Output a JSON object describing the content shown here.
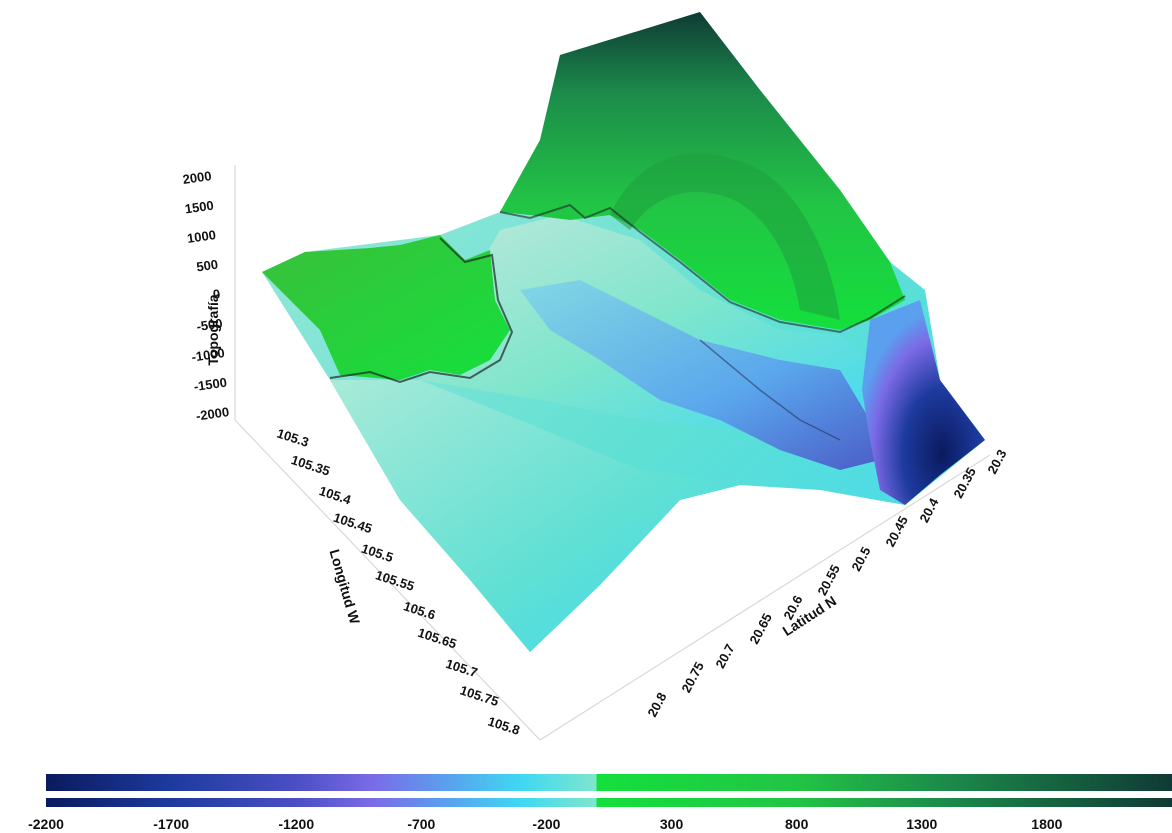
{
  "chart_data": {
    "type": "surface3d",
    "z_axis": {
      "label": "Topografía",
      "ticks": [
        "2000",
        "1500",
        "1000",
        "500",
        "0",
        "-500",
        "-1000",
        "-1500",
        "-2000"
      ]
    },
    "longitude_axis": {
      "label": "Longitud W",
      "ticks": [
        "105.3",
        "105.35",
        "105.4",
        "105.45",
        "105.5",
        "105.55",
        "105.6",
        "105.65",
        "105.7",
        "105.75",
        "105.8"
      ]
    },
    "latitude_axis": {
      "label": "Latitud N",
      "ticks": [
        "20.8",
        "20.75",
        "20.7",
        "20.65",
        "20.6",
        "20.55",
        "20.5",
        "20.45",
        "20.4",
        "20.35",
        "20.3"
      ]
    },
    "colorbar": {
      "range": [
        -2200,
        2300
      ],
      "tick_labels": [
        "-2200",
        "-1700",
        "-1200",
        "-700",
        "-200",
        "300",
        "800",
        "1300",
        "1800"
      ],
      "stops": [
        {
          "value": -2200,
          "color": "#0a1a5e"
        },
        {
          "value": -1700,
          "color": "#1d3a9e"
        },
        {
          "value": -1200,
          "color": "#4a4fc4"
        },
        {
          "value": -900,
          "color": "#7b6ae6"
        },
        {
          "value": -600,
          "color": "#5aa0ee"
        },
        {
          "value": -300,
          "color": "#3fd8f2"
        },
        {
          "value": -1,
          "color": "#7fe6cc"
        },
        {
          "value": 0,
          "color": "#14e03c"
        },
        {
          "value": 800,
          "color": "#22c445"
        },
        {
          "value": 1400,
          "color": "#1c8a4a"
        },
        {
          "value": 2300,
          "color": "#0f3a35"
        }
      ]
    }
  }
}
